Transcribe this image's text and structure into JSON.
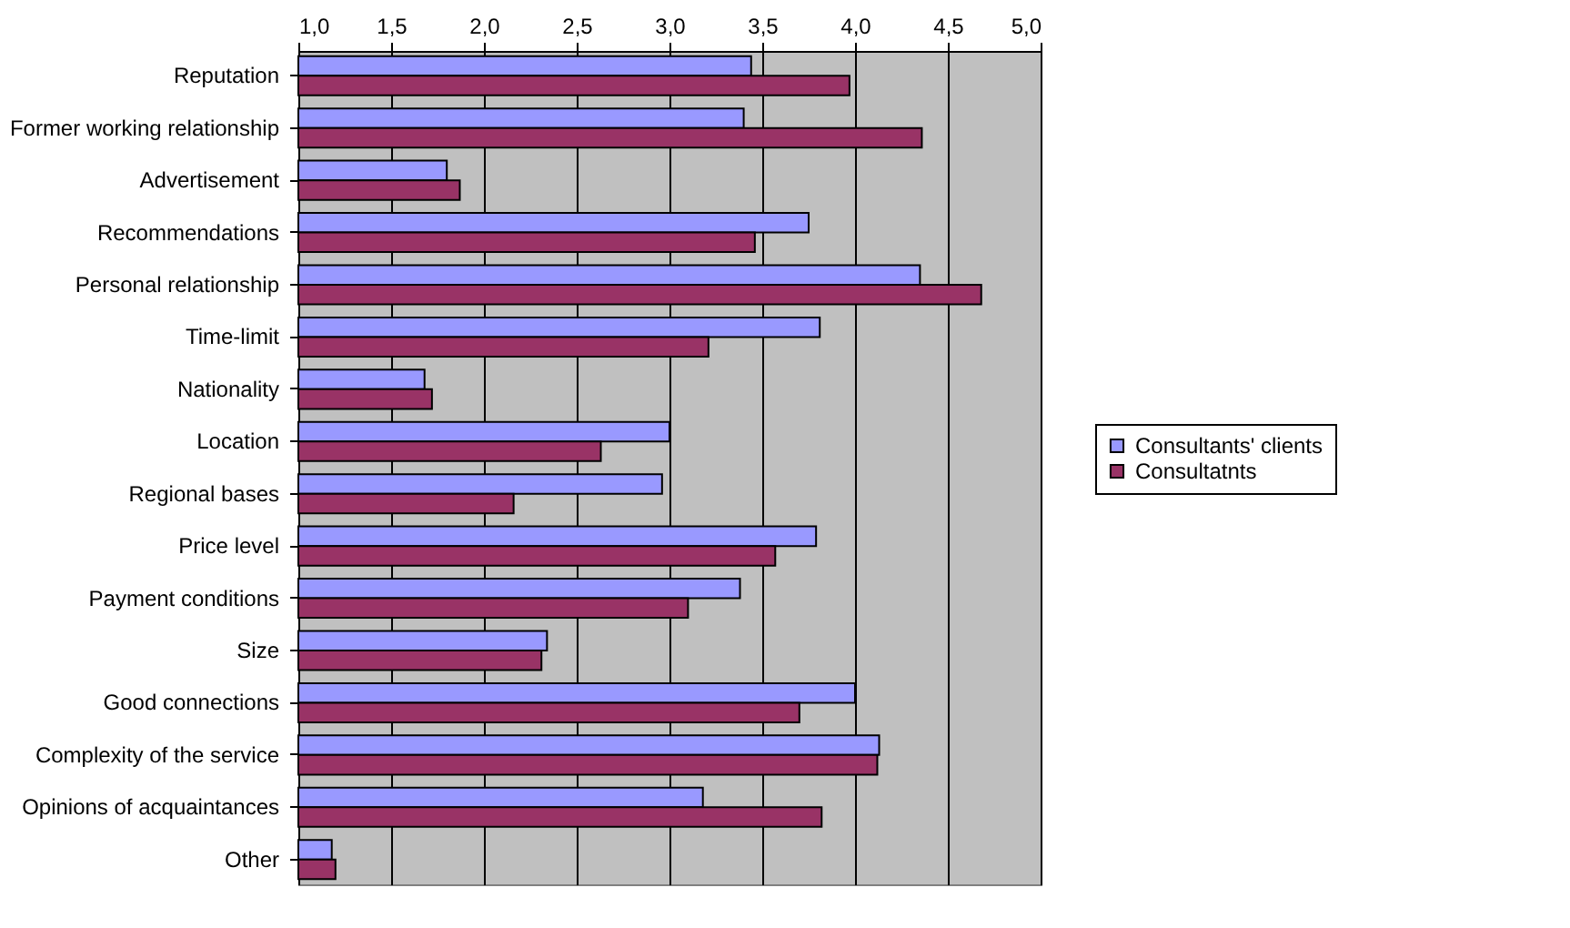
{
  "chart_data": {
    "type": "bar",
    "orientation": "horizontal",
    "categories": [
      "Reputation",
      "Former working relationship",
      "Advertisement",
      "Recommendations",
      "Personal relationship",
      "Time-limit",
      "Nationality",
      "Location",
      "Regional bases",
      "Price level",
      "Payment conditions",
      "Size",
      "Good connections",
      "Complexity of the service",
      "Opinions of acquaintances",
      "Other"
    ],
    "series": [
      {
        "name": "Consultants' clients",
        "color": "#9999ff",
        "values": [
          3.44,
          3.4,
          1.8,
          3.75,
          4.35,
          3.81,
          1.68,
          3.0,
          2.96,
          3.79,
          3.38,
          2.34,
          4.0,
          4.13,
          3.18,
          1.18
        ]
      },
      {
        "name": "Consultatnts",
        "color": "#993366",
        "values": [
          3.97,
          4.36,
          1.87,
          3.46,
          4.68,
          3.21,
          1.72,
          2.63,
          2.16,
          3.57,
          3.1,
          2.31,
          3.7,
          4.12,
          3.82,
          1.2
        ]
      }
    ],
    "xlim": [
      1,
      5
    ],
    "xticks": [
      {
        "value": 1,
        "label": "1,0"
      },
      {
        "value": 1.5,
        "label": "1,5"
      },
      {
        "value": 2,
        "label": "2,0"
      },
      {
        "value": 2.5,
        "label": "2,5"
      },
      {
        "value": 3,
        "label": "3,0"
      },
      {
        "value": 3.5,
        "label": "3,5"
      },
      {
        "value": 4,
        "label": "4,0"
      },
      {
        "value": 4.5,
        "label": "4,5"
      },
      {
        "value": 5,
        "label": "5,0"
      }
    ],
    "grid": "x",
    "legend": "right"
  }
}
